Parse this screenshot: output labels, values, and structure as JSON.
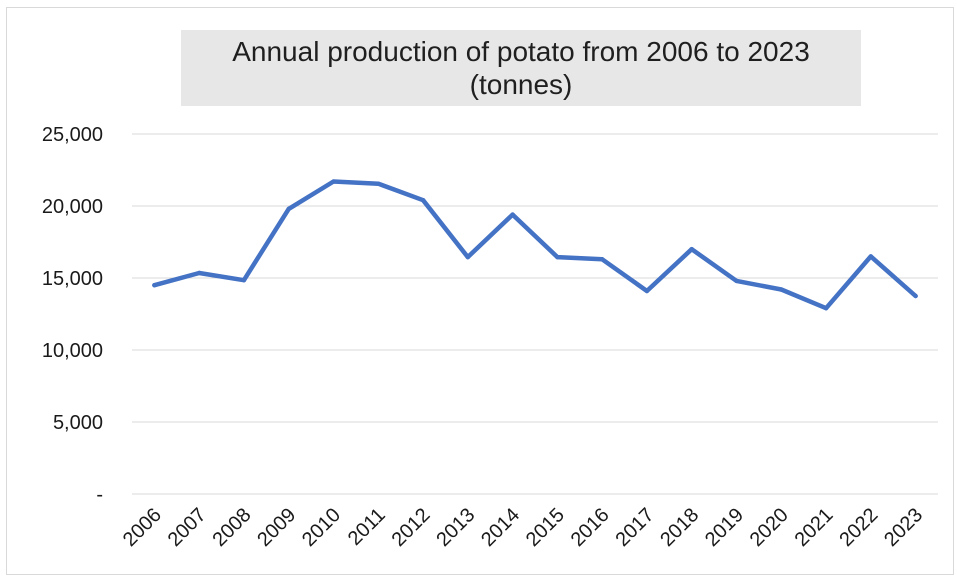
{
  "chart_data": {
    "type": "line",
    "title": "Annual production of potato from 2006 to 2023",
    "subtitle": "(tonnes)",
    "categories": [
      "2006",
      "2007",
      "2008",
      "2009",
      "2010",
      "2011",
      "2012",
      "2013",
      "2014",
      "2015",
      "2016",
      "2017",
      "2018",
      "2019",
      "2020",
      "2021",
      "2022",
      "2023"
    ],
    "series": [
      {
        "values": [
          14500,
          15350,
          14850,
          19800,
          21700,
          21550,
          20400,
          16450,
          19400,
          16450,
          16300,
          14100,
          17000,
          14800,
          14200,
          12900,
          16500,
          13750
        ]
      }
    ],
    "y_ticks": [
      {
        "value": 0,
        "label": "-"
      },
      {
        "value": 5000,
        "label": "5,000"
      },
      {
        "value": 10000,
        "label": "10,000"
      },
      {
        "value": 15000,
        "label": "15,000"
      },
      {
        "value": 20000,
        "label": "20,000"
      },
      {
        "value": 25000,
        "label": "25,000"
      }
    ],
    "ylim": [
      0,
      25000
    ],
    "xlabel": "",
    "ylabel": "",
    "grid": true,
    "legend": "none",
    "line_color": "#4472c4",
    "grid_color": "#d9d9d9"
  }
}
